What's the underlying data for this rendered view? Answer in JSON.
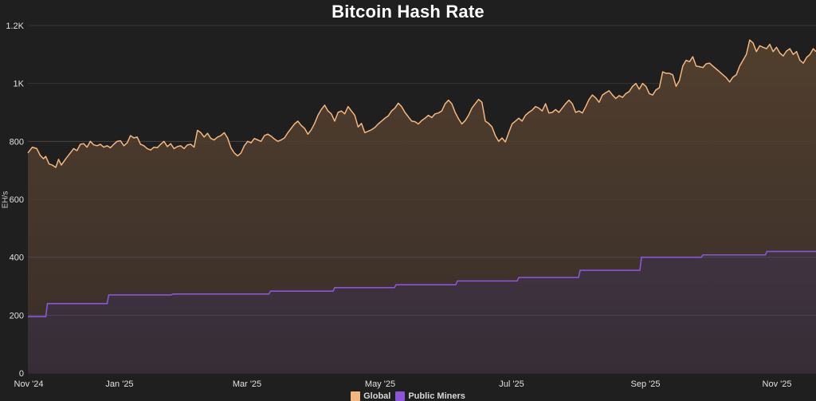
{
  "chart_data": {
    "type": "area",
    "title": "Bitcoin Hash Rate",
    "xlabel": "",
    "ylabel": "EH/s",
    "ylim": [
      0,
      1200
    ],
    "yticks": [
      0,
      200,
      400,
      600,
      800,
      1000,
      1200
    ],
    "ytick_labels": [
      "0",
      "200",
      "400",
      "600",
      "800",
      "1K",
      "1.2K"
    ],
    "xticks": [
      "Nov '24",
      "Jan '25",
      "Mar '25",
      "May '25",
      "Jul '25",
      "Sep '25",
      "Nov '25"
    ],
    "grid": true,
    "legend_position": "bottom",
    "x_range_months": [
      0,
      12.6
    ],
    "series": [
      {
        "name": "Global",
        "color": "#f4b67f",
        "kind": "line-area",
        "points": [
          [
            0.0,
            760
          ],
          [
            0.08,
            780
          ],
          [
            0.16,
            775
          ],
          [
            0.22,
            752
          ],
          [
            0.28,
            740
          ],
          [
            0.32,
            748
          ],
          [
            0.38,
            722
          ],
          [
            0.44,
            718
          ],
          [
            0.5,
            710
          ],
          [
            0.55,
            738
          ],
          [
            0.6,
            718
          ],
          [
            0.68,
            740
          ],
          [
            0.76,
            760
          ],
          [
            0.82,
            775
          ],
          [
            0.88,
            768
          ],
          [
            0.94,
            790
          ],
          [
            1.0,
            792
          ],
          [
            1.06,
            780
          ],
          [
            1.12,
            800
          ],
          [
            1.18,
            788
          ],
          [
            1.24,
            785
          ],
          [
            1.3,
            790
          ],
          [
            1.36,
            780
          ],
          [
            1.42,
            785
          ],
          [
            1.48,
            778
          ],
          [
            1.54,
            790
          ],
          [
            1.6,
            800
          ],
          [
            1.66,
            802
          ],
          [
            1.72,
            785
          ],
          [
            1.78,
            795
          ],
          [
            1.84,
            820
          ],
          [
            1.9,
            812
          ],
          [
            1.96,
            815
          ],
          [
            2.02,
            790
          ],
          [
            2.08,
            785
          ],
          [
            2.14,
            775
          ],
          [
            2.2,
            770
          ],
          [
            2.26,
            780
          ],
          [
            2.32,
            778
          ],
          [
            2.38,
            790
          ],
          [
            2.44,
            800
          ],
          [
            2.5,
            782
          ],
          [
            2.56,
            792
          ],
          [
            2.62,
            775
          ],
          [
            2.68,
            782
          ],
          [
            2.74,
            785
          ],
          [
            2.8,
            775
          ],
          [
            2.86,
            788
          ],
          [
            2.92,
            790
          ],
          [
            2.98,
            780
          ],
          [
            3.04,
            838
          ],
          [
            3.1,
            830
          ],
          [
            3.16,
            815
          ],
          [
            3.22,
            828
          ],
          [
            3.28,
            810
          ],
          [
            3.34,
            805
          ],
          [
            3.4,
            815
          ],
          [
            3.46,
            820
          ],
          [
            3.52,
            830
          ],
          [
            3.58,
            812
          ],
          [
            3.64,
            778
          ],
          [
            3.7,
            760
          ],
          [
            3.76,
            750
          ],
          [
            3.82,
            760
          ],
          [
            3.88,
            785
          ],
          [
            3.94,
            800
          ],
          [
            4.0,
            795
          ],
          [
            4.06,
            810
          ],
          [
            4.12,
            805
          ],
          [
            4.18,
            800
          ],
          [
            4.24,
            820
          ],
          [
            4.3,
            825
          ],
          [
            4.36,
            818
          ],
          [
            4.42,
            808
          ],
          [
            4.48,
            800
          ],
          [
            4.54,
            805
          ],
          [
            4.6,
            812
          ],
          [
            4.66,
            830
          ],
          [
            4.72,
            845
          ],
          [
            4.78,
            860
          ],
          [
            4.84,
            870
          ],
          [
            4.9,
            855
          ],
          [
            4.96,
            845
          ],
          [
            5.02,
            825
          ],
          [
            5.08,
            840
          ],
          [
            5.14,
            862
          ],
          [
            5.2,
            890
          ],
          [
            5.26,
            910
          ],
          [
            5.32,
            925
          ],
          [
            5.38,
            905
          ],
          [
            5.44,
            895
          ],
          [
            5.5,
            870
          ],
          [
            5.56,
            900
          ],
          [
            5.62,
            905
          ],
          [
            5.68,
            895
          ],
          [
            5.74,
            920
          ],
          [
            5.8,
            905
          ],
          [
            5.86,
            890
          ],
          [
            5.92,
            850
          ],
          [
            5.98,
            862
          ],
          [
            6.04,
            830
          ],
          [
            6.1,
            835
          ],
          [
            6.16,
            840
          ],
          [
            6.22,
            848
          ],
          [
            6.28,
            860
          ],
          [
            6.34,
            870
          ],
          [
            6.4,
            880
          ],
          [
            6.46,
            888
          ],
          [
            6.52,
            905
          ],
          [
            6.58,
            915
          ],
          [
            6.64,
            932
          ],
          [
            6.7,
            920
          ],
          [
            6.76,
            900
          ],
          [
            6.82,
            885
          ],
          [
            6.88,
            870
          ],
          [
            6.94,
            868
          ],
          [
            7.0,
            860
          ],
          [
            7.06,
            872
          ],
          [
            7.12,
            880
          ],
          [
            7.18,
            890
          ],
          [
            7.24,
            882
          ],
          [
            7.3,
            895
          ],
          [
            7.36,
            898
          ],
          [
            7.42,
            905
          ],
          [
            7.48,
            930
          ],
          [
            7.54,
            942
          ],
          [
            7.6,
            930
          ],
          [
            7.66,
            900
          ],
          [
            7.72,
            878
          ],
          [
            7.78,
            860
          ],
          [
            7.84,
            872
          ],
          [
            7.9,
            890
          ],
          [
            7.96,
            915
          ],
          [
            8.02,
            930
          ],
          [
            8.08,
            945
          ],
          [
            8.14,
            935
          ],
          [
            8.2,
            870
          ],
          [
            8.26,
            862
          ],
          [
            8.32,
            850
          ],
          [
            8.38,
            820
          ],
          [
            8.44,
            800
          ],
          [
            8.5,
            812
          ],
          [
            8.56,
            798
          ],
          [
            8.62,
            830
          ],
          [
            8.68,
            860
          ],
          [
            8.74,
            870
          ],
          [
            8.8,
            880
          ],
          [
            8.86,
            870
          ],
          [
            8.92,
            890
          ],
          [
            8.98,
            900
          ],
          [
            9.04,
            908
          ],
          [
            9.1,
            920
          ],
          [
            9.16,
            915
          ],
          [
            9.22,
            905
          ],
          [
            9.28,
            930
          ],
          [
            9.34,
            898
          ],
          [
            9.4,
            900
          ],
          [
            9.46,
            910
          ],
          [
            9.52,
            900
          ],
          [
            9.58,
            915
          ],
          [
            9.64,
            930
          ],
          [
            9.7,
            942
          ],
          [
            9.76,
            930
          ],
          [
            9.82,
            900
          ],
          [
            9.88,
            905
          ],
          [
            9.94,
            898
          ],
          [
            10.0,
            920
          ],
          [
            10.06,
            945
          ],
          [
            10.12,
            960
          ],
          [
            10.18,
            950
          ],
          [
            10.24,
            935
          ],
          [
            10.3,
            960
          ],
          [
            10.36,
            968
          ],
          [
            10.42,
            975
          ],
          [
            10.48,
            960
          ],
          [
            10.54,
            948
          ],
          [
            10.6,
            958
          ],
          [
            10.66,
            952
          ],
          [
            10.72,
            965
          ],
          [
            10.78,
            972
          ],
          [
            10.84,
            990
          ],
          [
            10.9,
            1000
          ],
          [
            10.96,
            980
          ],
          [
            11.02,
            1000
          ],
          [
            11.08,
            990
          ],
          [
            11.14,
            965
          ],
          [
            11.2,
            960
          ],
          [
            11.26,
            978
          ],
          [
            11.32,
            985
          ],
          [
            11.38,
            1040
          ],
          [
            11.44,
            1035
          ],
          [
            11.5,
            1035
          ],
          [
            11.56,
            1030
          ],
          [
            11.62,
            990
          ],
          [
            11.68,
            1010
          ],
          [
            11.74,
            1060
          ],
          [
            11.8,
            1080
          ],
          [
            11.86,
            1075
          ],
          [
            11.92,
            1092
          ],
          [
            11.98,
            1060
          ],
          [
            12.04,
            1058
          ],
          [
            12.1,
            1055
          ],
          [
            12.16,
            1068
          ],
          [
            12.22,
            1070
          ],
          [
            12.28,
            1060
          ],
          [
            12.34,
            1050
          ],
          [
            12.4,
            1040
          ],
          [
            12.46,
            1030
          ],
          [
            12.52,
            1020
          ],
          [
            12.58,
            1005
          ],
          [
            12.64,
            1022
          ],
          [
            12.7,
            1030
          ],
          [
            12.76,
            1060
          ],
          [
            12.82,
            1080
          ],
          [
            12.88,
            1100
          ],
          [
            12.94,
            1150
          ],
          [
            13.0,
            1140
          ],
          [
            13.06,
            1110
          ],
          [
            13.12,
            1130
          ],
          [
            13.18,
            1125
          ],
          [
            13.24,
            1120
          ],
          [
            13.3,
            1135
          ],
          [
            13.36,
            1110
          ],
          [
            13.42,
            1125
          ],
          [
            13.48,
            1105
          ],
          [
            13.54,
            1095
          ],
          [
            13.6,
            1112
          ],
          [
            13.66,
            1120
          ],
          [
            13.72,
            1100
          ],
          [
            13.78,
            1110
          ],
          [
            13.84,
            1080
          ],
          [
            13.9,
            1070
          ],
          [
            13.96,
            1090
          ],
          [
            14.02,
            1100
          ],
          [
            14.08,
            1120
          ],
          [
            14.14,
            1110
          ]
        ]
      },
      {
        "name": "Public Miners",
        "color": "#8a55d6",
        "kind": "step-area",
        "steps": [
          [
            0.0,
            195
          ],
          [
            0.35,
            240
          ],
          [
            1.45,
            270
          ],
          [
            2.6,
            273
          ],
          [
            4.35,
            283
          ],
          [
            5.5,
            295
          ],
          [
            6.6,
            305
          ],
          [
            7.7,
            318
          ],
          [
            8.8,
            330
          ],
          [
            9.9,
            355
          ],
          [
            11.0,
            400
          ],
          [
            12.1,
            408
          ],
          [
            13.25,
            420
          ],
          [
            14.14,
            420
          ]
        ]
      }
    ]
  },
  "legend": {
    "items": [
      {
        "label": "Global",
        "color": "#f4b67f"
      },
      {
        "label": "Public Miners",
        "color": "#8a55d6"
      }
    ]
  }
}
